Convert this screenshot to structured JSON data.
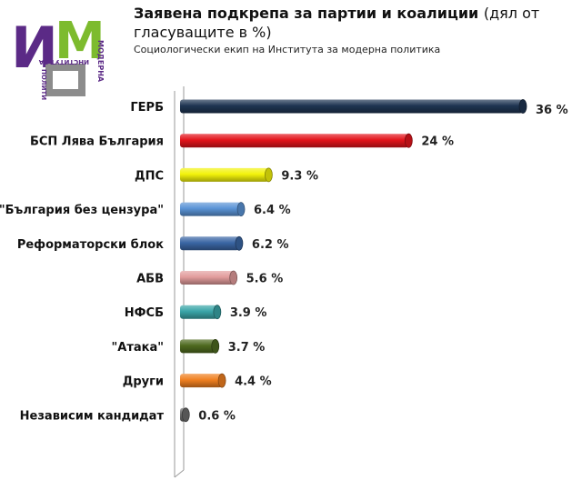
{
  "header": {
    "title_main": "Заявена подкрепа за партии и коалиции",
    "title_paren": "(дял от гласуващите в %)",
    "subtitle": "Социологически екип на Института за модерна политика"
  },
  "logo": {
    "letters": "ИМ",
    "word1": "МОДЕРНА",
    "word2": "ИНСТИТУТ ЗА",
    "word3": "ПОЛИТИКА",
    "colors": {
      "purple": "#5b2a86",
      "green": "#7dbb2e",
      "gray": "#8c8c8c"
    }
  },
  "chart_data": {
    "type": "bar",
    "orientation": "horizontal",
    "categories": [
      "ГЕРБ",
      "БСП Лява България",
      "ДПС",
      "\"България без цензура\"",
      "Реформаторски блок",
      "АБВ",
      "НФСБ",
      "\"Атака\"",
      "Други",
      "Независим кандидат"
    ],
    "values": [
      36,
      24,
      9.3,
      6.4,
      6.2,
      5.6,
      3.9,
      3.7,
      4.4,
      0.6
    ],
    "value_labels": [
      "36 %",
      "24 %",
      "9.3 %",
      "6.4 %",
      "6.2 %",
      "5.6 %",
      "3.9 %",
      "3.7 %",
      "4.4 %",
      "0.6 %"
    ],
    "colors": [
      "#1f3552",
      "#e3141b",
      "#f2f20a",
      "#5a93d6",
      "#3a66a4",
      "#e29c9c",
      "#3aa5a8",
      "#4e6a1f",
      "#f08020",
      "#6b6b6b"
    ],
    "xlim": [
      0,
      36
    ],
    "grid": false,
    "legend": "none"
  }
}
